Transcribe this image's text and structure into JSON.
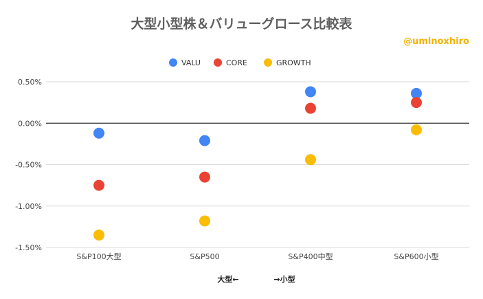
{
  "chart_data": {
    "type": "scatter",
    "title": "大型小型株＆バリューグロース比較表",
    "categories": [
      "S&P100大型",
      "S&P500",
      "S&P400中型",
      "S&P600小型"
    ],
    "series": [
      {
        "name": "VALU",
        "color": "#4285f4",
        "values": [
          -0.12,
          -0.21,
          0.38,
          0.36
        ]
      },
      {
        "name": "CORE",
        "color": "#ea4335",
        "values": [
          -0.75,
          -0.65,
          0.18,
          0.25
        ]
      },
      {
        "name": "GROWTH",
        "color": "#fbbc04",
        "values": [
          -1.35,
          -1.18,
          -0.44,
          -0.08
        ]
      }
    ],
    "ylim": [
      -1.5,
      0.5
    ],
    "yticks": [
      0.5,
      0.0,
      -0.5,
      -1.0,
      -1.5
    ],
    "ytick_labels": [
      "0.50%",
      "0.00%",
      "-0.50%",
      "-1.00%",
      "-1.50%"
    ],
    "xlabel_left": "大型←",
    "xlabel_right": "→小型",
    "ylabel": "",
    "grid": true,
    "legend_position": "top-center"
  },
  "watermark": "@uminoxhiro"
}
